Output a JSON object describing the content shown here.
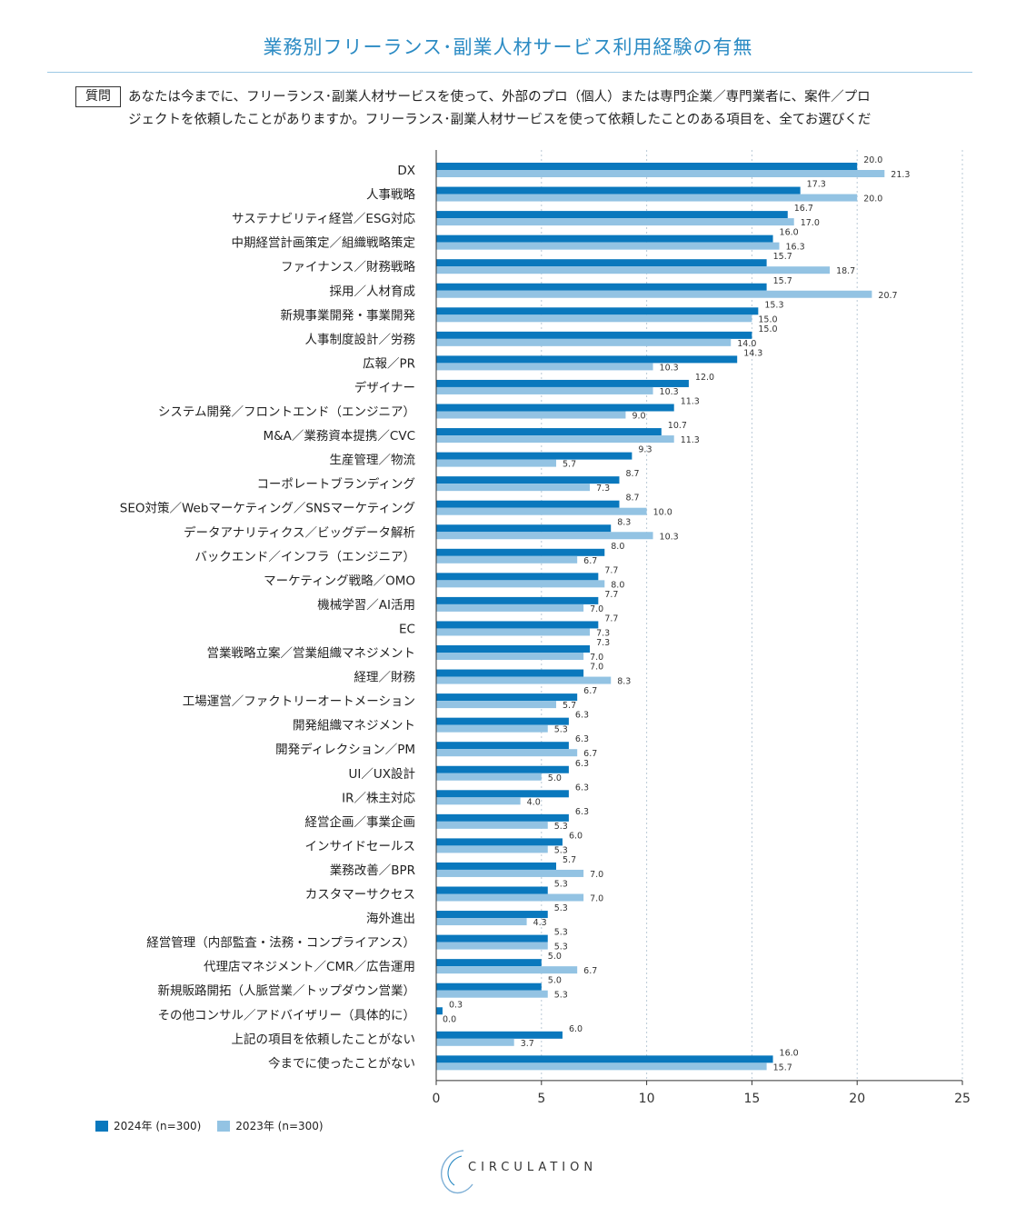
{
  "title": "業務別フリーランス･副業人材サービス利用経験の有無",
  "question": {
    "badge": "質問",
    "line1": "あなたは今までに、フリーランス･副業人材サービスを使って、外部のプロ（個人）または専門企業／専門業者に、案件／プロ",
    "line2": "ジェクトを依頼したことがありますか。フリーランス･副業人材サービスを使って依頼したことのある項目を、全てお選びくだ"
  },
  "colors": {
    "s2024": "#0a78bd",
    "s2023": "#93c3e3",
    "title": "#2b8bc4"
  },
  "chart_data": {
    "type": "bar",
    "orientation": "horizontal",
    "xlim": [
      0,
      25
    ],
    "xticks": [
      0,
      5,
      10,
      15,
      20,
      25
    ],
    "categories": [
      "DX",
      "人事戦略",
      "サステナビリティ経営／ESG対応",
      "中期経営計画策定／組織戦略策定",
      "ファイナンス／財務戦略",
      "採用／人材育成",
      "新規事業開発・事業開発",
      "人事制度設計／労務",
      "広報／PR",
      "デザイナー",
      "システム開発／フロントエンド（エンジニア）",
      "M&A／業務資本提携／CVC",
      "生産管理／物流",
      "コーポレートブランディング",
      "SEO対策／Webマーケティング／SNSマーケティング",
      "データアナリティクス／ビッグデータ解析",
      "バックエンド／インフラ（エンジニア）",
      "マーケティング戦略／OMO",
      "機械学習／AI活用",
      "EC",
      "営業戦略立案／営業組織マネジメント",
      "経理／財務",
      "工場運営／ファクトリーオートメーション",
      "開発組織マネジメント",
      "開発ディレクション／PM",
      "UI／UX設計",
      "IR／株主対応",
      "経営企画／事業企画",
      "インサイドセールス",
      "業務改善／BPR",
      "カスタマーサクセス",
      "海外進出",
      "経営管理（内部監査・法務・コンプライアンス）",
      "代理店マネジメント／CMR／広告運用",
      "新規販路開拓（人脈営業／トップダウン営業）",
      "その他コンサル／アドバイザリー（具体的に）",
      "上記の項目を依頼したことがない",
      "今までに使ったことがない"
    ],
    "series": [
      {
        "name": "2024年 (n=300)",
        "values": [
          20.0,
          17.3,
          16.7,
          16.0,
          15.7,
          15.7,
          15.3,
          15.0,
          14.3,
          12.0,
          11.3,
          10.7,
          9.3,
          8.7,
          8.7,
          8.3,
          8.0,
          7.7,
          7.7,
          7.7,
          7.3,
          7.0,
          6.7,
          6.3,
          6.3,
          6.3,
          6.3,
          6.3,
          6.0,
          5.7,
          5.3,
          5.3,
          5.3,
          5.0,
          5.0,
          0.3,
          6.0,
          16.0
        ]
      },
      {
        "name": "2023年 (n=300)",
        "values": [
          21.3,
          20.0,
          17.0,
          16.3,
          18.7,
          20.7,
          15.0,
          14.0,
          10.3,
          10.3,
          9.0,
          11.3,
          5.7,
          7.3,
          10.0,
          10.3,
          6.7,
          8.0,
          7.0,
          7.3,
          7.0,
          8.3,
          5.7,
          5.3,
          6.7,
          5.0,
          4.0,
          5.3,
          5.3,
          7.0,
          7.0,
          4.3,
          5.3,
          6.7,
          5.3,
          0.0,
          3.7,
          15.7
        ]
      }
    ],
    "grid": true,
    "legend": "bottom-left"
  },
  "logo": {
    "text": "CIRCULATION"
  }
}
